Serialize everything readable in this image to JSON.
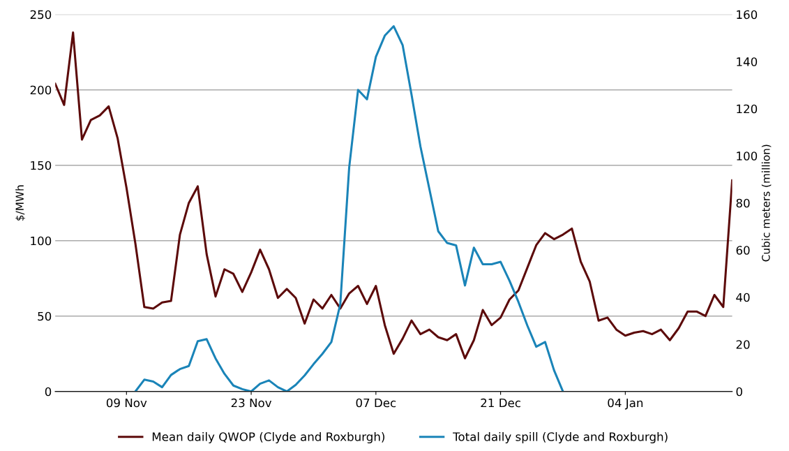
{
  "chart_data": {
    "type": "line",
    "ylabel": "$/MWh",
    "y2label": "Cubic meters (million)",
    "categories": [
      null,
      null,
      null,
      null,
      null,
      null,
      null,
      null,
      "09 Nov",
      null,
      null,
      null,
      null,
      null,
      null,
      null,
      null,
      null,
      null,
      null,
      null,
      null,
      "23 Nov",
      null,
      null,
      null,
      null,
      null,
      null,
      null,
      null,
      null,
      null,
      null,
      null,
      null,
      "07 Dec",
      null,
      null,
      null,
      null,
      null,
      null,
      null,
      null,
      null,
      null,
      null,
      null,
      null,
      "21 Dec",
      null,
      null,
      null,
      null,
      null,
      null,
      null,
      null,
      null,
      null,
      null,
      null,
      null,
      "04 Jan",
      null,
      null,
      null,
      null,
      null,
      null,
      null,
      null,
      null,
      null,
      null,
      null
    ],
    "series": [
      {
        "name": "Mean daily QWOP (Clyde and Roxburgh)",
        "color": "#5c0a0a",
        "values": [
          204,
          190,
          238,
          167,
          180,
          183,
          189,
          168,
          135,
          98,
          56,
          55,
          59,
          60,
          104,
          125,
          136,
          91,
          63,
          81,
          78,
          66,
          79,
          94,
          81,
          62,
          68,
          62,
          45,
          61,
          55,
          64,
          55,
          65,
          70,
          58,
          70,
          44,
          25,
          35,
          47,
          38,
          41,
          36,
          34,
          38,
          22,
          34,
          54,
          44,
          49,
          61,
          67,
          82,
          97,
          105,
          101,
          104,
          108,
          86,
          73,
          47,
          49,
          41,
          37,
          39,
          40,
          38,
          41,
          34,
          42,
          53,
          53,
          50,
          64,
          56,
          140
        ]
      },
      {
        "name": "Total daily spill (Clyde and Roxburgh)",
        "color": "#1a84b8",
        "axis": "y2",
        "values": [
          null,
          null,
          null,
          null,
          null,
          null,
          null,
          null,
          null,
          0,
          5,
          4.2,
          1.8,
          7,
          9.5,
          10.8,
          21.3,
          22.2,
          14,
          7.5,
          2.5,
          1,
          0,
          3.3,
          4.7,
          1.8,
          0,
          2.8,
          6.8,
          11.6,
          16,
          21,
          37,
          95,
          128,
          124,
          142,
          151,
          155,
          147,
          126,
          104,
          86,
          68,
          63,
          62,
          45,
          61,
          54,
          54,
          55,
          47,
          38,
          28,
          19,
          21,
          9,
          0,
          null,
          null,
          null,
          null,
          null,
          null,
          null,
          null,
          null,
          null,
          null,
          null,
          null,
          null,
          null,
          null,
          null,
          null,
          null
        ]
      }
    ],
    "ylim": [
      0,
      250
    ],
    "yticks": [
      0,
      50,
      100,
      150,
      200,
      250
    ],
    "y2lim": [
      0,
      160
    ],
    "y2ticks": [
      0,
      20,
      40,
      60,
      80,
      100,
      120,
      140,
      160
    ],
    "grid": "y",
    "legend": "bottom",
    "marker": "none",
    "line_style": "solid"
  }
}
